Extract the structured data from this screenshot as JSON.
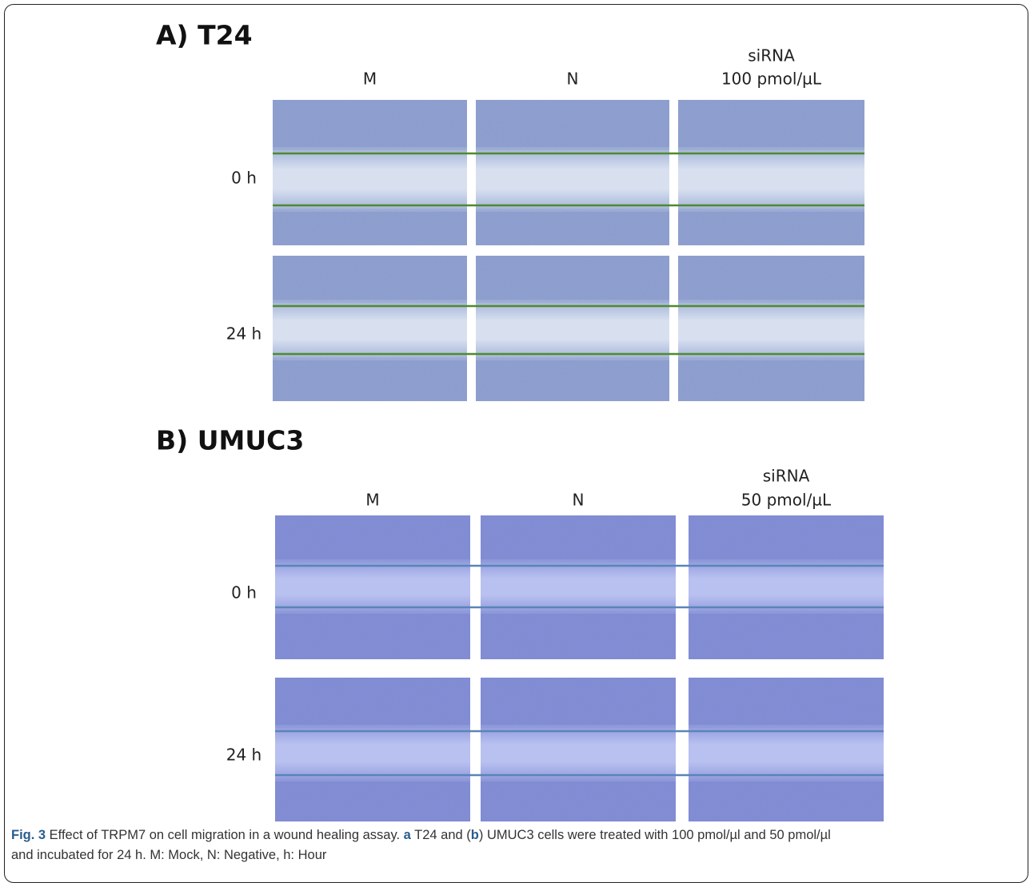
{
  "panels": [
    {
      "title": "A) T24",
      "columns": [
        [
          "M"
        ],
        [
          "N"
        ],
        [
          "siRNA",
          "100 pmol/µL"
        ]
      ],
      "rows": [
        "0 h",
        "24 h"
      ]
    },
    {
      "title": "B) UMUC3",
      "columns": [
        [
          "M"
        ],
        [
          "N"
        ],
        [
          "siRNA",
          "50 pmol/µL"
        ]
      ],
      "rows": [
        "0 h",
        "24 h"
      ]
    }
  ],
  "caption": {
    "label": "Fig. 3",
    "text1": " Effect of TRPM7 on cell migration in a wound healing assay. ",
    "a": "a",
    "text2": " T24 and (",
    "b": "b",
    "text3": ") UMUC3 cells were treated with 100 pmol/µl and 50 pmol/µl",
    "text4": "and incubated for 24 h. M: Mock, N: Negative, h: Hour"
  }
}
